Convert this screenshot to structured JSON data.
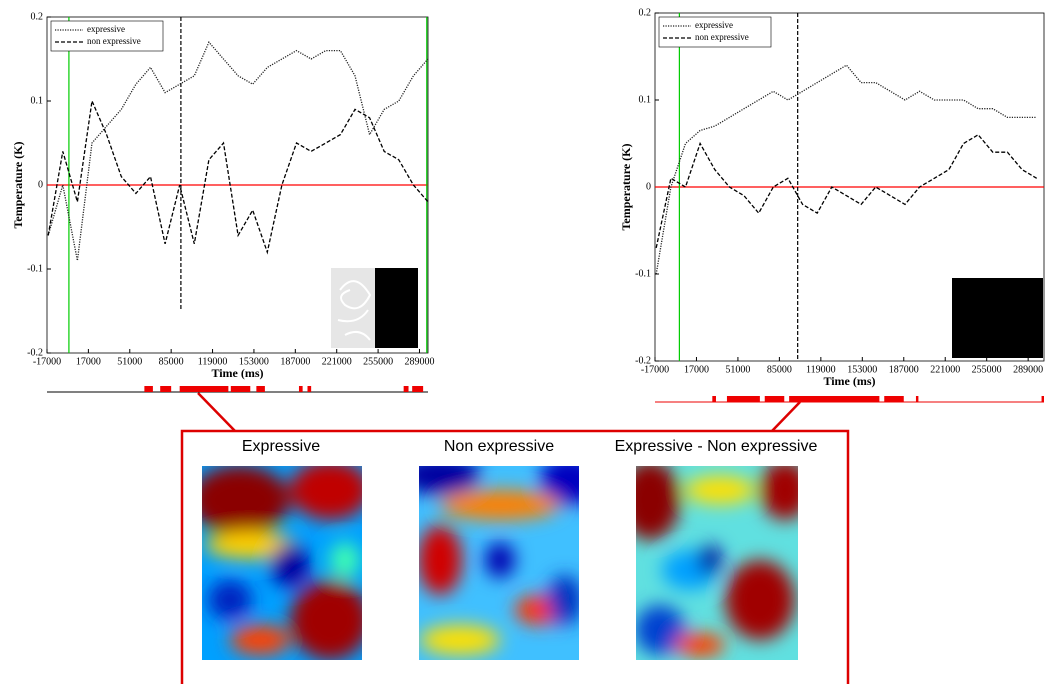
{
  "chart_data": [
    {
      "type": "line",
      "x_label": "Time (ms)",
      "y_label": "Temperature (K)",
      "x": [
        -16000,
        -4000,
        8000,
        20000,
        32000,
        44000,
        56000,
        68000,
        80000,
        92000,
        104000,
        116000,
        128000,
        140000,
        152000,
        164000,
        176000,
        188000,
        200000,
        212000,
        224000,
        236000,
        248000,
        260000,
        272000,
        284000,
        296000
      ],
      "series": [
        {
          "name": "expressive",
          "color": "#222222",
          "style": "dotted",
          "values": [
            -0.06,
            0.0,
            -0.09,
            0.05,
            0.07,
            0.09,
            0.12,
            0.14,
            0.11,
            0.12,
            0.13,
            0.17,
            0.15,
            0.13,
            0.12,
            0.14,
            0.15,
            0.16,
            0.15,
            0.16,
            0.16,
            0.13,
            0.06,
            0.09,
            0.1,
            0.13,
            0.15
          ]
        },
        {
          "name": "non expressive",
          "color": "#000000",
          "style": "dashed",
          "values": [
            -0.06,
            0.04,
            -0.02,
            0.1,
            0.06,
            0.01,
            -0.01,
            0.01,
            -0.07,
            0.0,
            -0.07,
            0.03,
            0.05,
            -0.06,
            -0.03,
            -0.08,
            0.0,
            0.05,
            0.04,
            0.05,
            0.06,
            0.09,
            0.08,
            0.04,
            0.03,
            0.0,
            -0.02
          ]
        }
      ],
      "xlim": [
        -17000,
        296000
      ],
      "ylim": [
        -0.2,
        0.2
      ],
      "xticks": [
        -17000,
        17000,
        51000,
        85000,
        119000,
        153000,
        187000,
        221000,
        255000,
        289000
      ],
      "yticks": [
        -0.2,
        -0.1,
        0,
        0.1,
        0.2
      ],
      "hline": {
        "y": 0,
        "color": "#ff0000"
      },
      "vlines": [
        {
          "x": 1000,
          "color": "#00cc00",
          "style": "solid",
          "ybottom": -0.2
        },
        {
          "x": 93000,
          "color": "#000000",
          "style": "dashed",
          "ybottom": -0.15
        },
        {
          "x": 295000,
          "color": "#00cc00",
          "style": "solid",
          "ybottom": -0.2
        }
      ],
      "significant_ranges": [
        [
          63000,
          70000
        ],
        [
          76000,
          85000
        ],
        [
          92000,
          132000
        ],
        [
          134000,
          150000
        ],
        [
          155000,
          162000
        ],
        [
          190000,
          193000
        ],
        [
          197000,
          200000
        ],
        [
          276000,
          280000
        ],
        [
          283000,
          292000
        ]
      ],
      "significant_color": "#ee0000"
    },
    {
      "type": "line",
      "x_label": "Time (ms)",
      "y_label": "Temperature (K)",
      "x": [
        -16000,
        -4000,
        8000,
        20000,
        32000,
        44000,
        56000,
        68000,
        80000,
        92000,
        104000,
        116000,
        128000,
        140000,
        152000,
        164000,
        176000,
        188000,
        200000,
        212000,
        224000,
        236000,
        248000,
        260000,
        272000,
        284000,
        296000
      ],
      "series": [
        {
          "name": "expressive",
          "color": "#222222",
          "style": "dotted",
          "values": [
            -0.1,
            0.0,
            0.05,
            0.065,
            0.07,
            0.08,
            0.09,
            0.1,
            0.11,
            0.1,
            0.11,
            0.12,
            0.13,
            0.14,
            0.12,
            0.12,
            0.11,
            0.1,
            0.11,
            0.1,
            0.1,
            0.1,
            0.09,
            0.09,
            0.08,
            0.08,
            0.08
          ]
        },
        {
          "name": "non expressive",
          "color": "#000000",
          "style": "dashed",
          "values": [
            -0.07,
            0.01,
            0.0,
            0.05,
            0.02,
            0.0,
            -0.01,
            -0.03,
            0.0,
            0.01,
            -0.02,
            -0.03,
            0.0,
            -0.01,
            -0.02,
            0.0,
            -0.01,
            -0.02,
            0.0,
            0.01,
            0.02,
            0.05,
            0.06,
            0.04,
            0.04,
            0.02,
            0.01
          ]
        }
      ],
      "xlim": [
        -17000,
        302000
      ],
      "ylim": [
        -0.2,
        0.2
      ],
      "xticks": [
        -17000,
        17000,
        51000,
        85000,
        119000,
        153000,
        187000,
        221000,
        255000,
        289000
      ],
      "yticks": [
        -0.2,
        -0.1,
        0,
        0.1,
        0.2
      ],
      "hline": {
        "y": 0,
        "color": "#ff0000"
      },
      "vlines": [
        {
          "x": 3000,
          "color": "#00cc00",
          "style": "solid",
          "ybottom": -0.2
        },
        {
          "x": 100000,
          "color": "#000000",
          "style": "dashed",
          "ybottom": -0.2
        }
      ],
      "significant_ranges": [
        [
          30000,
          33000
        ],
        [
          42000,
          69000
        ],
        [
          73000,
          89000
        ],
        [
          93000,
          167000
        ],
        [
          171000,
          187000
        ],
        [
          197000,
          199000
        ],
        [
          300000,
          302000
        ]
      ],
      "significant_color": "#ee0000"
    }
  ],
  "heatmaps": {
    "titles": [
      "Expressive",
      "Non expressive",
      "Expressive - Non expressive"
    ]
  }
}
